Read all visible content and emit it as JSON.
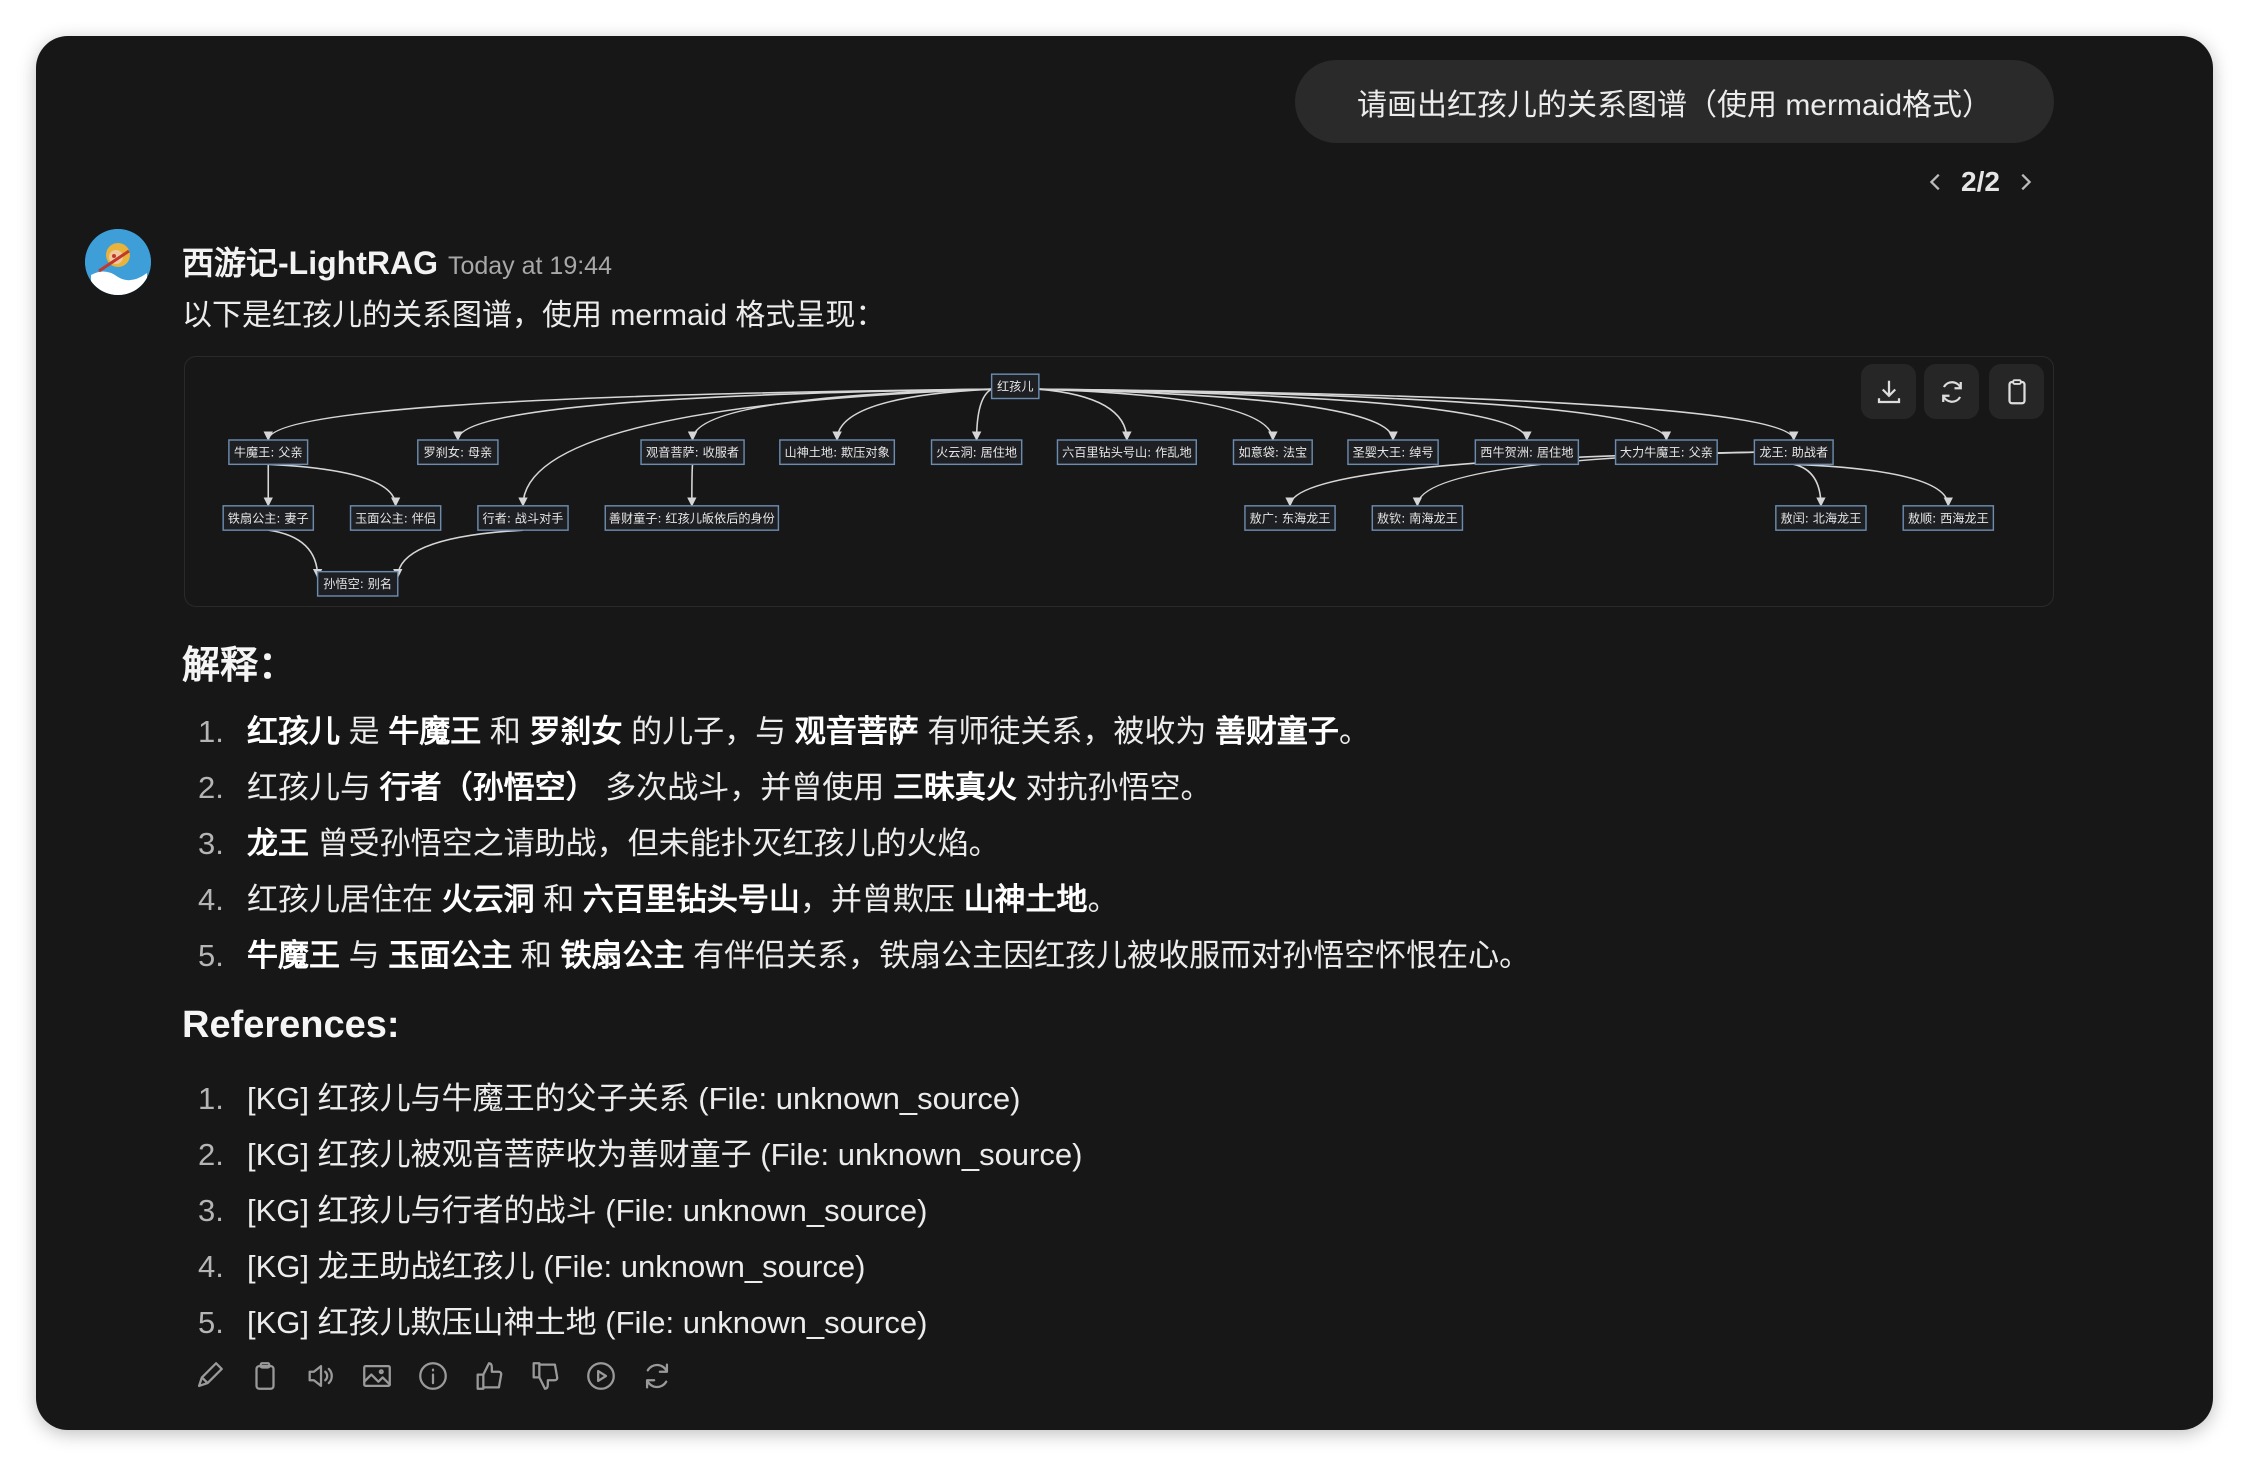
{
  "user_message": "请画出红孩儿的关系图谱（使用 mermaid格式）",
  "pager": {
    "label": "2/2"
  },
  "assistant": {
    "name": "西游记-LightRAG",
    "timestamp": "Today at 19:44",
    "intro": "以下是红孩儿的关系图谱，使用 mermaid 格式呈现："
  },
  "diagram": {
    "nodes": {
      "root": "红孩儿",
      "nmw": "牛魔王: 父亲",
      "lcn": "罗刹女: 母亲",
      "gy": "观音菩萨: 收服者",
      "ss": "山神土地: 欺压对象",
      "hyd": "火云洞: 居住地",
      "lbl": "六百里钻头号山: 作乱地",
      "ryd": "如意袋: 法宝",
      "sy": "圣婴大王: 绰号",
      "xn": "西牛贺洲: 居住地",
      "dl": "大力牛魔王: 父亲",
      "lw": "龙王: 助战者",
      "tsgz": "铁扇公主: 妻子",
      "ymgz": "玉面公主: 伴侣",
      "xz": "行者: 战斗对手",
      "scz": "善财童子: 红孩儿皈依后的身份",
      "ag": "敖广: 东海龙王",
      "aq": "敖钦: 南海龙王",
      "ar": "敖闰: 北海龙王",
      "as": "敖顺: 西海龙王",
      "swk": "孙悟空: 别名"
    },
    "edges": [
      [
        "root",
        "nmw"
      ],
      [
        "root",
        "lcn"
      ],
      [
        "root",
        "xz"
      ],
      [
        "root",
        "gy"
      ],
      [
        "root",
        "ss"
      ],
      [
        "root",
        "hyd"
      ],
      [
        "root",
        "lbl"
      ],
      [
        "root",
        "ryd"
      ],
      [
        "root",
        "sy"
      ],
      [
        "root",
        "xn"
      ],
      [
        "root",
        "dl"
      ],
      [
        "root",
        "lw"
      ],
      [
        "nmw",
        "tsgz"
      ],
      [
        "nmw",
        "ymgz"
      ],
      [
        "gy",
        "scz"
      ],
      [
        "tsgz",
        "swk"
      ],
      [
        "xz",
        "swk"
      ],
      [
        "lw",
        "ag"
      ],
      [
        "lw",
        "aq"
      ],
      [
        "lw",
        "ar"
      ],
      [
        "lw",
        "as"
      ]
    ],
    "buttons": {
      "download": "download-icon",
      "refresh": "refresh-icon",
      "copy": "clipboard-icon"
    }
  },
  "explanation": {
    "heading": "解释：",
    "items": [
      [
        {
          "t": "红孩儿",
          "b": true
        },
        {
          "t": " 是 "
        },
        {
          "t": "牛魔王",
          "b": true
        },
        {
          "t": " 和 "
        },
        {
          "t": "罗刹女",
          "b": true
        },
        {
          "t": " 的儿子，与 "
        },
        {
          "t": "观音菩萨",
          "b": true
        },
        {
          "t": " 有师徒关系，被收为 "
        },
        {
          "t": "善财童子",
          "b": true
        },
        {
          "t": "。"
        }
      ],
      [
        {
          "t": "红孩儿与 "
        },
        {
          "t": "行者（孙悟空）",
          "b": true
        },
        {
          "t": " 多次战斗，并曾使用 "
        },
        {
          "t": "三昧真火",
          "b": true
        },
        {
          "t": " 对抗孙悟空。"
        }
      ],
      [
        {
          "t": "龙王",
          "b": true
        },
        {
          "t": " 曾受孙悟空之请助战，但未能扑灭红孩儿的火焰。"
        }
      ],
      [
        {
          "t": "红孩儿居住在 "
        },
        {
          "t": "火云洞",
          "b": true
        },
        {
          "t": " 和 "
        },
        {
          "t": "六百里钻头号山",
          "b": true
        },
        {
          "t": "，并曾欺压 "
        },
        {
          "t": "山神土地",
          "b": true
        },
        {
          "t": "。"
        }
      ],
      [
        {
          "t": "牛魔王",
          "b": true
        },
        {
          "t": " 与 "
        },
        {
          "t": "玉面公主",
          "b": true
        },
        {
          "t": " 和 "
        },
        {
          "t": "铁扇公主",
          "b": true
        },
        {
          "t": " 有伴侣关系，铁扇公主因红孩儿被收服而对孙悟空怀恨在心。"
        }
      ]
    ]
  },
  "references": {
    "heading": "References:",
    "items": [
      "[KG] 红孩儿与牛魔王的父子关系 (File: unknown_source)",
      "[KG] 红孩儿被观音菩萨收为善财童子 (File: unknown_source)",
      "[KG] 红孩儿与行者的战斗 (File: unknown_source)",
      "[KG] 龙王助战红孩儿 (File: unknown_source)",
      "[KG] 红孩儿欺压山神土地 (File: unknown_source)"
    ]
  },
  "actions": [
    "edit-icon",
    "copy-icon",
    "read-aloud-icon",
    "image-icon",
    "info-icon",
    "thumbs-up-icon",
    "thumbs-down-icon",
    "play-icon",
    "regenerate-icon"
  ],
  "colors": {
    "background": "#171717",
    "bubble": "#2a2a2a",
    "node_border": "#6b8cae",
    "avatar": "#3d9ed8"
  }
}
